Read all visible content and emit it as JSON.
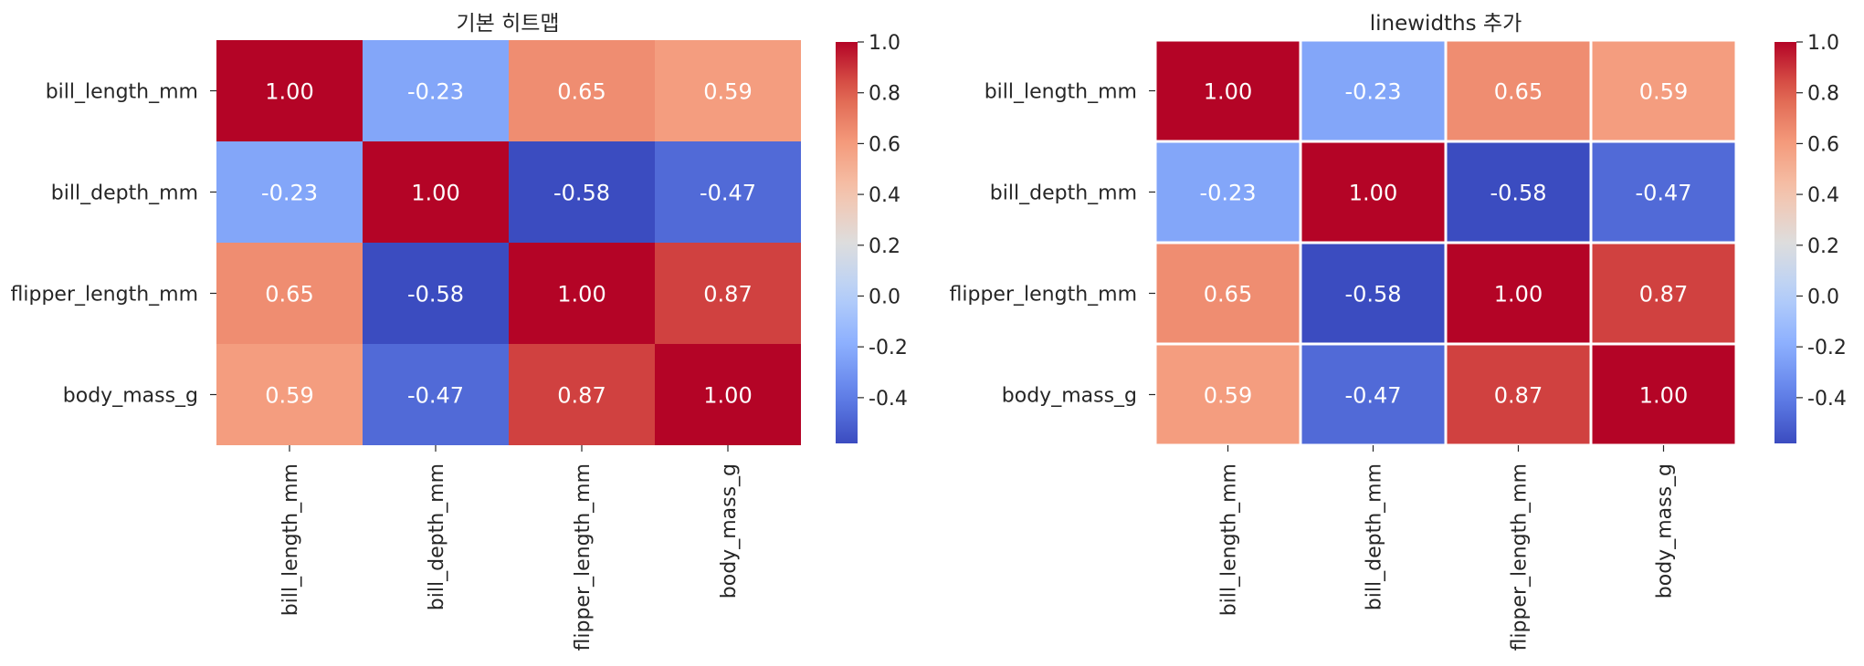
{
  "chart_data": [
    {
      "type": "heatmap",
      "title": "기본 히트맵",
      "rows": [
        "bill_length_mm",
        "bill_depth_mm",
        "flipper_length_mm",
        "body_mass_g"
      ],
      "cols": [
        "bill_length_mm",
        "bill_depth_mm",
        "flipper_length_mm",
        "body_mass_g"
      ],
      "values": [
        [
          1.0,
          -0.23,
          0.65,
          0.59
        ],
        [
          -0.23,
          1.0,
          -0.58,
          -0.47
        ],
        [
          0.65,
          -0.58,
          1.0,
          0.87
        ],
        [
          0.59,
          -0.47,
          0.87,
          1.0
        ]
      ],
      "annotations": [
        [
          "1.00",
          "-0.23",
          "0.65",
          "0.59"
        ],
        [
          "-0.23",
          "1.00",
          "-0.58",
          "-0.47"
        ],
        [
          "0.65",
          "-0.58",
          "1.00",
          "0.87"
        ],
        [
          "0.59",
          "-0.47",
          "0.87",
          "1.00"
        ]
      ],
      "colormap": "coolwarm",
      "value_range": [
        -0.58,
        1.0
      ],
      "colorbar_ticks": [
        "1.0",
        "0.8",
        "0.6",
        "0.4",
        "0.2",
        "0.0",
        "-0.2",
        "-0.4"
      ],
      "colorbar_tick_values": [
        1.0,
        0.8,
        0.6,
        0.4,
        0.2,
        0.0,
        -0.2,
        -0.4
      ],
      "cell_lines": false
    },
    {
      "type": "heatmap",
      "title": "linewidths 추가",
      "rows": [
        "bill_length_mm",
        "bill_depth_mm",
        "flipper_length_mm",
        "body_mass_g"
      ],
      "cols": [
        "bill_length_mm",
        "bill_depth_mm",
        "flipper_length_mm",
        "body_mass_g"
      ],
      "values": [
        [
          1.0,
          -0.23,
          0.65,
          0.59
        ],
        [
          -0.23,
          1.0,
          -0.58,
          -0.47
        ],
        [
          0.65,
          -0.58,
          1.0,
          0.87
        ],
        [
          0.59,
          -0.47,
          0.87,
          1.0
        ]
      ],
      "annotations": [
        [
          "1.00",
          "-0.23",
          "0.65",
          "0.59"
        ],
        [
          "-0.23",
          "1.00",
          "-0.58",
          "-0.47"
        ],
        [
          "0.65",
          "-0.58",
          "1.00",
          "0.87"
        ],
        [
          "0.59",
          "-0.47",
          "0.87",
          "1.00"
        ]
      ],
      "colormap": "coolwarm",
      "value_range": [
        -0.58,
        1.0
      ],
      "colorbar_ticks": [
        "1.0",
        "0.8",
        "0.6",
        "0.4",
        "0.2",
        "0.0",
        "-0.2",
        "-0.4"
      ],
      "colorbar_tick_values": [
        1.0,
        0.8,
        0.6,
        0.4,
        0.2,
        0.0,
        -0.2,
        -0.4
      ],
      "cell_lines": true
    }
  ]
}
